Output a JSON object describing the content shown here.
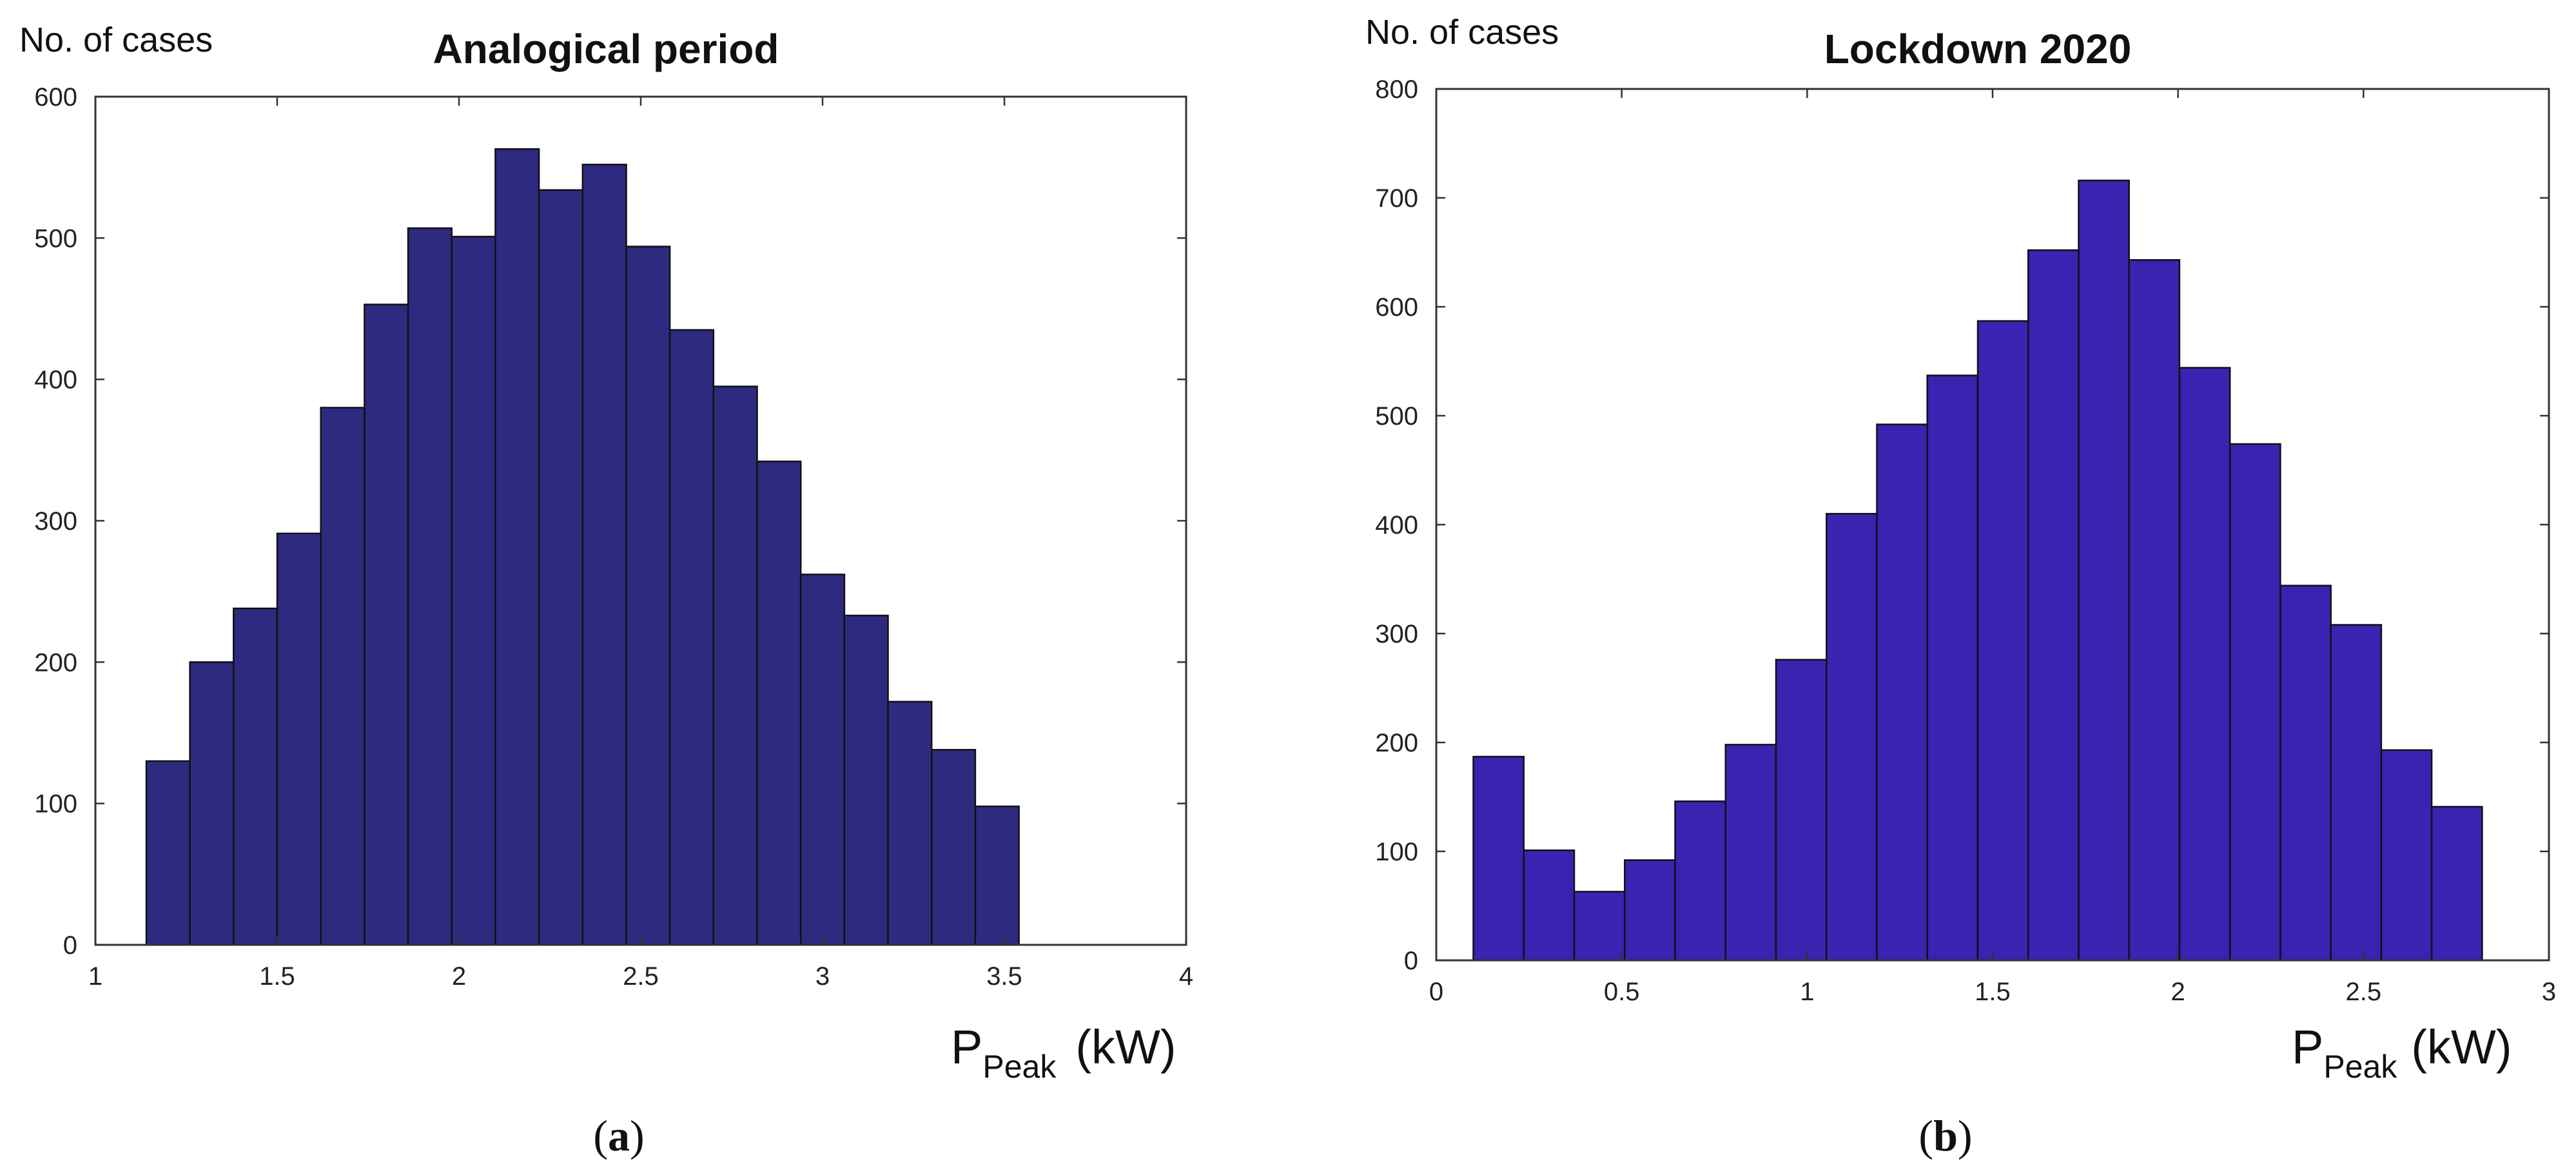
{
  "chart_data": [
    {
      "type": "bar",
      "title": "Analogical period",
      "ylabel": "No. of cases",
      "xlabel_main": "P",
      "xlabel_sub": "Peak",
      "xlabel_unit": "(kW)",
      "caption_letter": "a",
      "xlim": [
        1,
        4
      ],
      "ylim": [
        0,
        600
      ],
      "xticks": [
        1,
        1.5,
        2,
        2.5,
        3,
        3.5,
        4
      ],
      "xtick_labels": [
        "1",
        "1.5",
        "2",
        "2.5",
        "3",
        "3.5",
        "4"
      ],
      "yticks": [
        0,
        100,
        200,
        300,
        400,
        500,
        600
      ],
      "ytick_labels": [
        "0",
        "100",
        "200",
        "300",
        "400",
        "500",
        "600"
      ],
      "bin_start": 1.14,
      "bin_width": 0.12,
      "values": [
        130,
        200,
        238,
        291,
        380,
        453,
        507,
        501,
        563,
        534,
        552,
        494,
        435,
        395,
        342,
        262,
        233,
        172,
        138,
        98
      ],
      "bar_color": "#2e2a80"
    },
    {
      "type": "bar",
      "title": "Lockdown 2020",
      "ylabel": "No. of cases",
      "xlabel_main": "P",
      "xlabel_sub": "Peak",
      "xlabel_unit": "(kW)",
      "caption_letter": "b",
      "xlim": [
        0,
        3
      ],
      "ylim": [
        0,
        800
      ],
      "xticks": [
        0,
        0.5,
        1,
        1.5,
        2,
        2.5,
        3
      ],
      "xtick_labels": [
        "0",
        "0.5",
        "1",
        "1.5",
        "2",
        "2.5",
        "3"
      ],
      "yticks": [
        0,
        100,
        200,
        300,
        400,
        500,
        600,
        700,
        800
      ],
      "ytick_labels": [
        "0",
        "100",
        "200",
        "300",
        "400",
        "500",
        "600",
        "700",
        "800"
      ],
      "bin_start": 0.1,
      "bin_width": 0.136,
      "values": [
        187,
        101,
        63,
        92,
        146,
        198,
        276,
        410,
        492,
        537,
        587,
        652,
        716,
        643,
        544,
        474,
        344,
        308,
        193,
        141
      ],
      "bar_color": "#3a23b0"
    }
  ]
}
